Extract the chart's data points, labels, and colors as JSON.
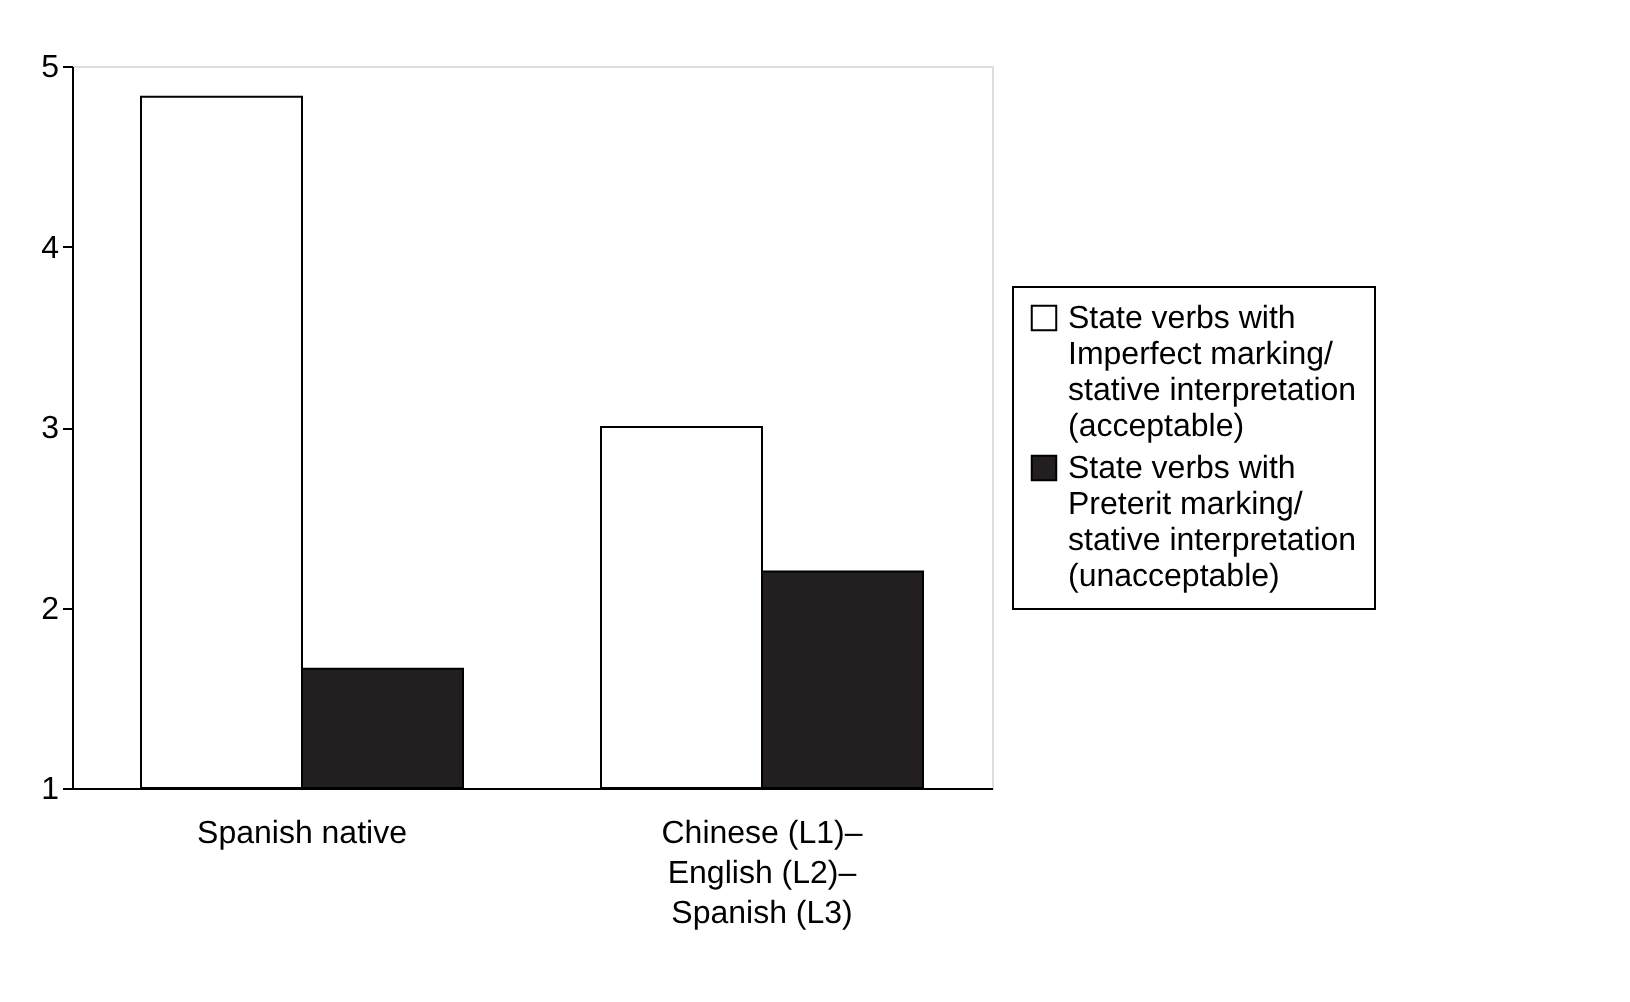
{
  "chart_data": {
    "type": "bar",
    "categories": [
      "Spanish native",
      "Chinese (L1)–English (L2)–Spanish (L3)"
    ],
    "series": [
      {
        "name": "State verbs with Imperfect marking/ stative interpretation (acceptable)",
        "color": "#ffffff",
        "values": [
          4.83,
          3.0
        ]
      },
      {
        "name": "State verbs with Preterit marking/ stative interpretation (unacceptable)",
        "color": "#231f20",
        "values": [
          1.66,
          2.2
        ]
      }
    ],
    "ylim": [
      1,
      5
    ],
    "yticks": [
      1,
      2,
      3,
      4,
      5
    ],
    "grid": false,
    "legend": "right"
  }
}
